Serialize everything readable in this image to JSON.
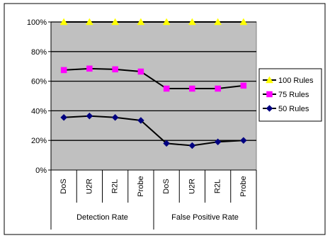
{
  "chart_data": {
    "type": "line",
    "ylim": [
      0,
      100
    ],
    "y_ticks": [
      "0%",
      "20%",
      "40%",
      "60%",
      "80%",
      "100%"
    ],
    "categories": [
      "DoS",
      "U2R",
      "R2L",
      "Probe",
      "DoS",
      "U2R",
      "R2L",
      "Probe"
    ],
    "groups": [
      "Detection Rate",
      "False Positive Rate"
    ],
    "grid": true,
    "plot_background": "#c0c0c0",
    "legend_position": "right",
    "series": [
      {
        "name": "100 Rules",
        "values": [
          100,
          100,
          100,
          100,
          100,
          100,
          100,
          100
        ],
        "color": "#ffff00",
        "line_color": "#000000",
        "marker": "triangle"
      },
      {
        "name": "75 Rules",
        "values": [
          67.5,
          68.5,
          68,
          66.5,
          55,
          55,
          55,
          57
        ],
        "color": "#ff00ff",
        "line_color": "#000000",
        "marker": "square"
      },
      {
        "name": "50 Rules",
        "values": [
          35.5,
          36.5,
          35.5,
          33.5,
          18,
          16.5,
          19,
          20
        ],
        "color": "#000080",
        "line_color": "#000000",
        "marker": "diamond"
      }
    ]
  }
}
